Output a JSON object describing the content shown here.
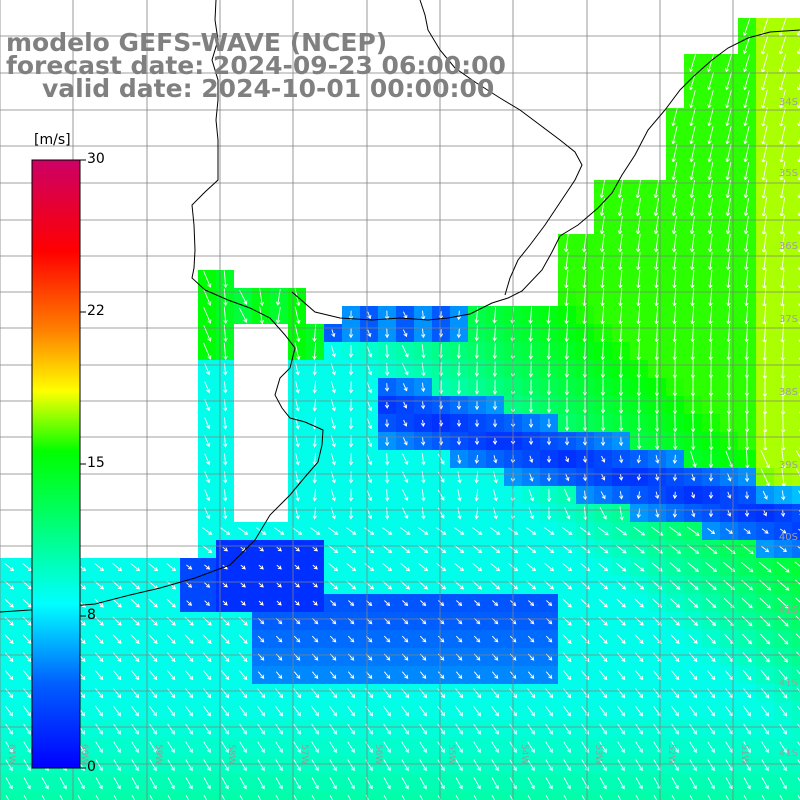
{
  "header": {
    "line1": "modelo GEFS-WAVE (NCEP)",
    "line2": "forecast date: 2024-09-23 06:00:00",
    "line3": "valid date: 2024-10-01 00:00:00"
  },
  "colorbar": {
    "unit": "[m/s]",
    "ticks": [
      "30",
      "22",
      "15",
      "8",
      "0"
    ],
    "colors": [
      "#0000ff",
      "#0090ff",
      "#00ffff",
      "#00ff00",
      "#ffff00",
      "#ff8000",
      "#ff0000",
      "#cc0066"
    ]
  },
  "grid": {
    "lon_labels": [
      "61W",
      "60W",
      "59W",
      "58W",
      "57W",
      "56W",
      "55W",
      "54W",
      "53W",
      "52W",
      "51W"
    ],
    "lat_labels": [
      "34S",
      "35S",
      "36S",
      "37S",
      "38S",
      "39S",
      "40S",
      "41S"
    ]
  },
  "colors": {
    "land": "#ffffff",
    "grid_line": "#808080",
    "coast": "#000000",
    "arrow": "#ffffff",
    "title": "#808080"
  },
  "field": {
    "variable": "wind speed",
    "unit": "m/s",
    "northeast_sector_speed_range": [
      13,
      17
    ],
    "central_band_speed_range": [
      0,
      4
    ],
    "southern_sector_speed_range": [
      6,
      10
    ],
    "northeast_wind_direction": "north to south",
    "southern_wind_direction": "north-west to south-east"
  }
}
